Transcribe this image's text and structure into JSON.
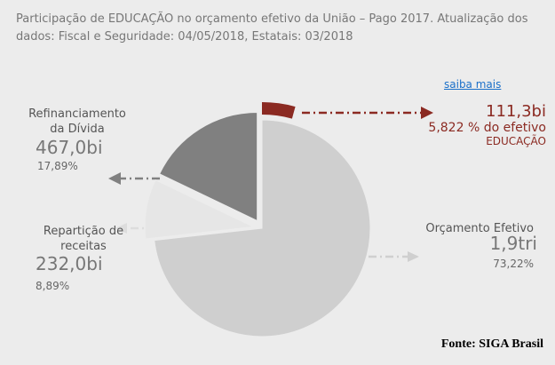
{
  "chart_data": {
    "type": "pie",
    "title": "Participação de EDUCAÇÃO no orçamento efetivo da União – Pago 2017. Atualização dos dados: Fiscal e Seguridade: 04/05/2018, Estatais: 03/2018",
    "categories": [
      "Refinanciamento da Dívida",
      "Repartição de receitas",
      "Orçamento Efetivo"
    ],
    "values": [
      17.89,
      8.89,
      73.22
    ],
    "value_labels": [
      "17,89%",
      "8,89%",
      "73,22%"
    ],
    "amounts": [
      "467,0bi",
      "232,0bi",
      "1,9tri"
    ],
    "colors": [
      "#808080",
      "#e6e6e6",
      "#cfcfcf"
    ],
    "highlight": {
      "name": "EDUCAÇÃO",
      "amount": "111,3bi",
      "share": 5.822,
      "share_label": "5,822 % do efetivo",
      "color": "#8b2a22"
    },
    "link": "saiba mais",
    "source": "Fonte: SIGA Brasil"
  }
}
